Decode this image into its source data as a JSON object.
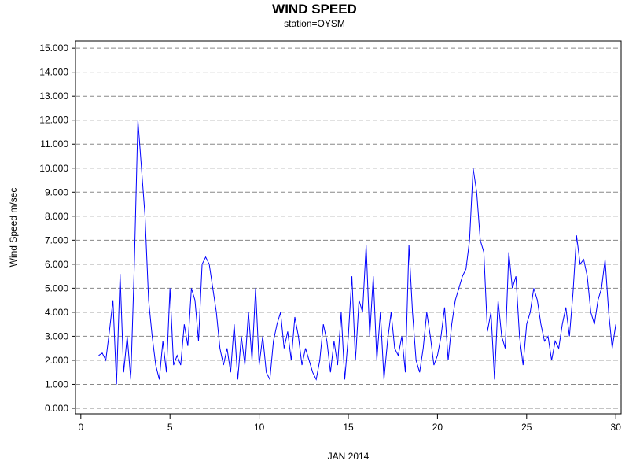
{
  "chart_data": {
    "type": "line",
    "title": "WIND SPEED",
    "subtitle": "station=OYSM",
    "ylabel": "Wind Speed m/sec",
    "xlabel": "JAN 2014",
    "color": "#0000ff",
    "grid": true,
    "xlim": [
      -0.3,
      30.3
    ],
    "ylim": [
      -0.23,
      15.3
    ],
    "xticks": [
      0,
      5,
      10,
      15,
      20,
      25,
      30
    ],
    "yticks": [
      {
        "value": 0,
        "label": "0.000"
      },
      {
        "value": 1,
        "label": "1.000"
      },
      {
        "value": 2,
        "label": "2.000"
      },
      {
        "value": 3,
        "label": "3.000"
      },
      {
        "value": 4,
        "label": "4.000"
      },
      {
        "value": 5,
        "label": "5.000"
      },
      {
        "value": 6,
        "label": "6.000"
      },
      {
        "value": 7,
        "label": "7.000"
      },
      {
        "value": 8,
        "label": "8.000"
      },
      {
        "value": 9,
        "label": "9.000"
      },
      {
        "value": 10,
        "label": "10.000"
      },
      {
        "value": 11,
        "label": "11.000"
      },
      {
        "value": 12,
        "label": "12.000"
      },
      {
        "value": 13,
        "label": "13.000"
      },
      {
        "value": 14,
        "label": "14.000"
      },
      {
        "value": 15,
        "label": "15.000"
      }
    ],
    "x": [
      1.0,
      1.2,
      1.4,
      1.6,
      1.8,
      2.0,
      2.2,
      2.4,
      2.6,
      2.8,
      3.0,
      3.2,
      3.4,
      3.6,
      3.8,
      4.0,
      4.2,
      4.4,
      4.6,
      4.8,
      5.0,
      5.2,
      5.4,
      5.6,
      5.8,
      6.0,
      6.2,
      6.4,
      6.6,
      6.8,
      7.0,
      7.2,
      7.4,
      7.6,
      7.8,
      8.0,
      8.2,
      8.4,
      8.6,
      8.8,
      9.0,
      9.2,
      9.4,
      9.6,
      9.8,
      10.0,
      10.2,
      10.4,
      10.6,
      10.8,
      11.0,
      11.2,
      11.4,
      11.6,
      11.8,
      12.0,
      12.2,
      12.4,
      12.6,
      12.8,
      13.0,
      13.2,
      13.4,
      13.6,
      13.8,
      14.0,
      14.2,
      14.4,
      14.6,
      14.8,
      15.0,
      15.2,
      15.4,
      15.6,
      15.8,
      16.0,
      16.2,
      16.4,
      16.6,
      16.8,
      17.0,
      17.2,
      17.4,
      17.6,
      17.8,
      18.0,
      18.2,
      18.4,
      18.6,
      18.8,
      19.0,
      19.2,
      19.4,
      19.6,
      19.8,
      20.0,
      20.2,
      20.4,
      20.6,
      20.8,
      21.0,
      21.2,
      21.4,
      21.6,
      21.8,
      22.0,
      22.2,
      22.4,
      22.6,
      22.8,
      23.0,
      23.2,
      23.4,
      23.6,
      23.8,
      24.0,
      24.2,
      24.4,
      24.6,
      24.8,
      25.0,
      25.2,
      25.4,
      25.6,
      25.8,
      26.0,
      26.2,
      26.4,
      26.6,
      26.8,
      27.0,
      27.2,
      27.4,
      27.6,
      27.8,
      28.0,
      28.2,
      28.4,
      28.6,
      28.8,
      29.0,
      29.2,
      29.4,
      29.6,
      29.8,
      30.0
    ],
    "values": [
      2.2,
      2.3,
      2.0,
      3.2,
      4.5,
      1.0,
      5.6,
      1.5,
      3.0,
      1.2,
      6.0,
      12.0,
      10.0,
      8.0,
      4.5,
      3.0,
      1.8,
      1.2,
      2.8,
      1.5,
      5.0,
      1.8,
      2.2,
      1.8,
      3.5,
      2.6,
      5.0,
      4.5,
      2.8,
      6.0,
      6.3,
      6.0,
      5.0,
      4.0,
      2.5,
      1.8,
      2.5,
      1.5,
      3.5,
      1.2,
      3.0,
      1.8,
      4.0,
      2.0,
      5.0,
      1.8,
      3.0,
      1.5,
      1.2,
      2.8,
      3.5,
      4.0,
      2.5,
      3.2,
      2.0,
      3.8,
      3.0,
      1.8,
      2.5,
      2.0,
      1.5,
      1.2,
      2.0,
      3.5,
      2.8,
      1.5,
      2.8,
      1.8,
      4.0,
      1.2,
      3.0,
      5.5,
      2.0,
      4.5,
      4.0,
      6.8,
      3.0,
      5.5,
      2.0,
      4.0,
      1.2,
      2.8,
      4.0,
      2.5,
      2.2,
      3.0,
      1.5,
      6.8,
      4.0,
      2.0,
      1.5,
      2.5,
      4.0,
      3.0,
      1.8,
      2.2,
      3.0,
      4.2,
      2.0,
      3.5,
      4.5,
      5.0,
      5.5,
      5.8,
      7.0,
      10.0,
      9.0,
      7.0,
      6.5,
      3.2,
      4.0,
      1.2,
      4.5,
      3.0,
      2.5,
      6.5,
      5.0,
      5.5,
      3.0,
      1.8,
      3.5,
      4.0,
      5.0,
      4.5,
      3.5,
      2.8,
      3.0,
      2.0,
      2.8,
      2.5,
      3.5,
      4.2,
      3.0,
      4.8,
      7.2,
      6.0,
      6.2,
      5.5,
      4.0,
      3.5,
      4.5,
      5.0,
      6.2,
      4.0,
      2.5,
      3.5
    ]
  }
}
